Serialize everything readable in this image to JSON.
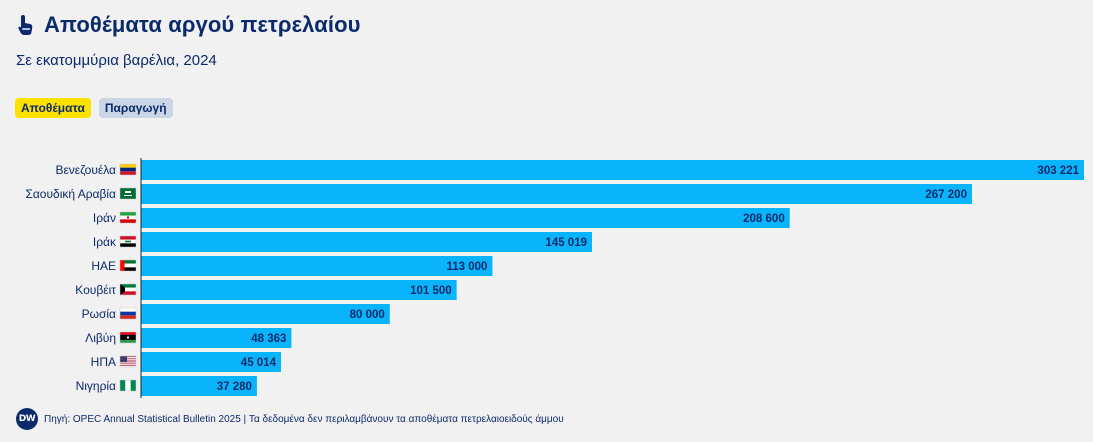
{
  "header": {
    "title": "Αποθέματα αργού πετρελαίου",
    "subtitle": "Σε εκατομμύρια βαρέλια, 2024"
  },
  "tabs": [
    {
      "label": "Αποθέματα",
      "active": true
    },
    {
      "label": "Παραγωγή",
      "active": false
    }
  ],
  "footer": {
    "logo_text": "DW",
    "source": "Πηγή: OPEC Annual Statistical Bulletin 2025 | Τα δεδομένα δεν περιλαμβάνουν τα αποθέματα πετρελαιοειδούς άμμου"
  },
  "colors": {
    "bar": "#0ab4fa",
    "text": "#0b2a6b",
    "axis": "#222222"
  },
  "chart_data": {
    "type": "bar",
    "orientation": "horizontal",
    "title": "Αποθέματα αργού πετρελαίου",
    "subtitle": "Σε εκατομμύρια βαρέλια, 2024",
    "categories": [
      "Βενεζουέλα",
      "Σαουδική Αραβία",
      "Ιράν",
      "Ιράκ",
      "ΗΑΕ",
      "Κουβέιτ",
      "Ρωσία",
      "Λιβύη",
      "ΗΠΑ",
      "Νιγηρία"
    ],
    "flags": [
      "venezuela-flag",
      "saudi-arabia-flag",
      "iran-flag",
      "iraq-flag",
      "uae-flag",
      "kuwait-flag",
      "russia-flag",
      "libya-flag",
      "usa-flag",
      "nigeria-flag"
    ],
    "values": [
      303221,
      267200,
      208600,
      145019,
      113000,
      101500,
      80000,
      48363,
      45014,
      37280
    ],
    "value_labels": [
      "303 221",
      "267 200",
      "208 600",
      "145 019",
      "113 000",
      "101 500",
      "80 000",
      "48 363",
      "45 014",
      "37 280"
    ],
    "xlim": [
      0,
      303221
    ],
    "xlabel": "",
    "ylabel": ""
  }
}
